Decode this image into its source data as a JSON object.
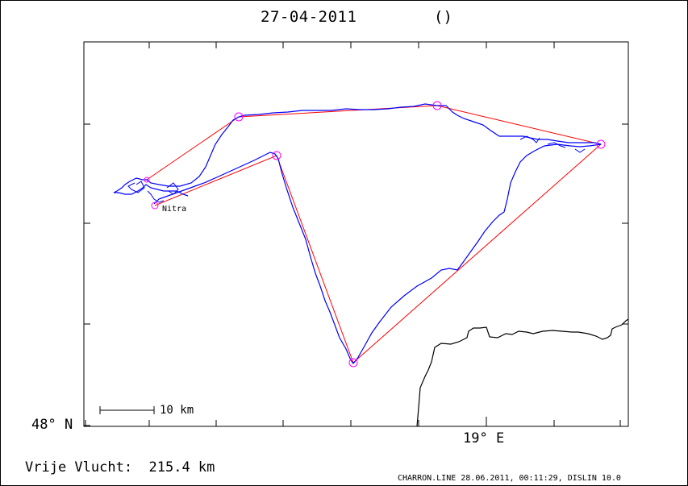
{
  "title": {
    "date": "27-04-2011",
    "pilot": "()"
  },
  "axes": {
    "lat_label": "48° N",
    "lon_label": "19° E"
  },
  "scale_bar": {
    "label": "10 km"
  },
  "place": {
    "name": "Nitra"
  },
  "flight": {
    "label": "Vrije Vlucht:  215.4 km",
    "distance_km": 215.4
  },
  "footer": {
    "text": "CHARRON.LINE 28.06.2011, 00:11:29, DISLIN 10.0"
  },
  "colors": {
    "track": "#0000ff",
    "task": "#ff0000",
    "turnpoint": "#ff00ff",
    "border": "#000000"
  },
  "icons": {
    "turnpoint": "circle-marker"
  }
}
